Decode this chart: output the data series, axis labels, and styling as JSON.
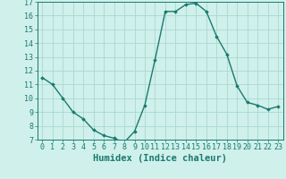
{
  "x": [
    0,
    1,
    2,
    3,
    4,
    5,
    6,
    7,
    8,
    9,
    10,
    11,
    12,
    13,
    14,
    15,
    16,
    17,
    18,
    19,
    20,
    21,
    22,
    23
  ],
  "y": [
    11.5,
    11.0,
    10.0,
    9.0,
    8.5,
    7.7,
    7.3,
    7.1,
    6.8,
    7.6,
    9.5,
    12.8,
    16.3,
    16.3,
    16.8,
    16.9,
    16.3,
    14.5,
    13.2,
    10.9,
    9.7,
    9.5,
    9.2,
    9.4
  ],
  "line_color": "#1a7a6e",
  "marker": "D",
  "marker_size": 1.8,
  "bg_color": "#cff0eb",
  "grid_color": "#aad8d2",
  "xlabel": "Humidex (Indice chaleur)",
  "xlabel_fontsize": 7.5,
  "ylim": [
    7,
    17
  ],
  "xlim_min": -0.5,
  "xlim_max": 23.5,
  "yticks": [
    7,
    8,
    9,
    10,
    11,
    12,
    13,
    14,
    15,
    16,
    17
  ],
  "xticks": [
    0,
    1,
    2,
    3,
    4,
    5,
    6,
    7,
    8,
    9,
    10,
    11,
    12,
    13,
    14,
    15,
    16,
    17,
    18,
    19,
    20,
    21,
    22,
    23
  ],
  "tick_fontsize": 6,
  "linewidth": 1.0,
  "label_color": "#1a7a6e"
}
